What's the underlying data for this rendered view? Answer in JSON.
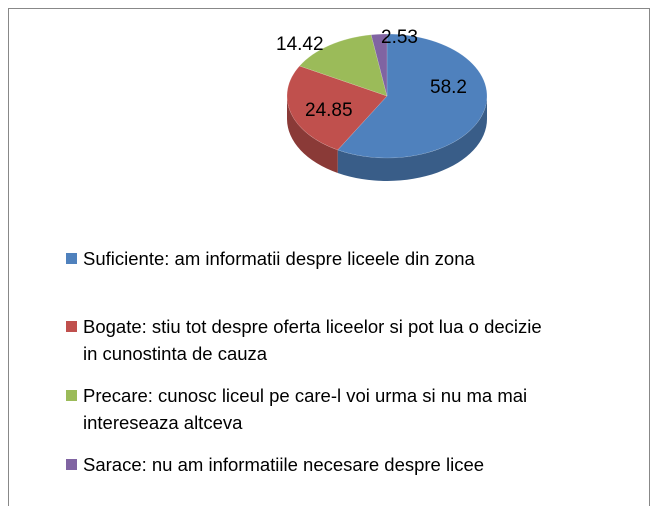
{
  "chart_data": {
    "type": "pie3d",
    "categories": [
      "Suficiente: am informatii despre liceele din zona",
      "Bogate: stiu tot despre oferta liceelor si pot lua o decizie in cunostinta de cauza",
      "Precare: cunosc liceul pe care-l voi urma si nu ma mai intereseaza altceva",
      "Sarace: nu am informatiile necesare despre licee"
    ],
    "values": [
      58.2,
      24.85,
      14.42,
      2.53
    ],
    "colors": [
      "#4f81bd",
      "#c0504d",
      "#9bbb59",
      "#8064a2"
    ],
    "legend": "bottom"
  }
}
